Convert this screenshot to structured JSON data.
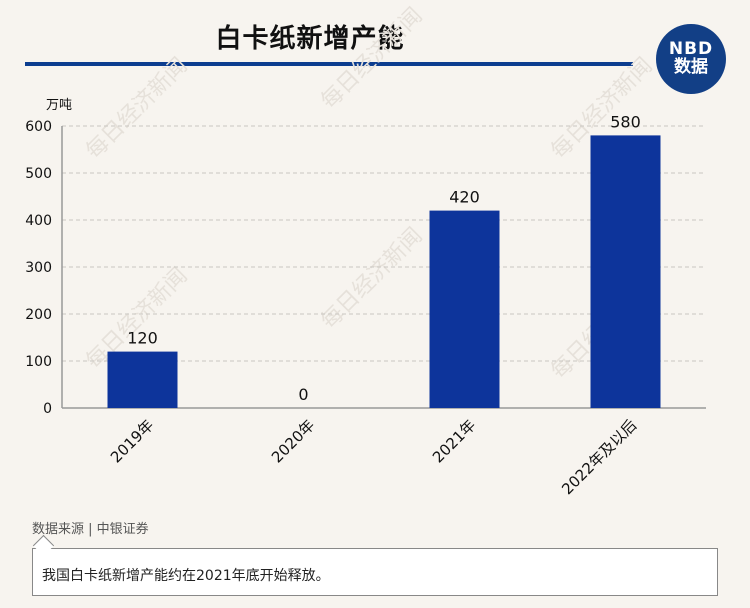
{
  "header": {
    "title": "白卡纸新增产能",
    "logo_text_top": "NBD",
    "logo_text_bottom": "数据"
  },
  "watermark_text": "每日经济新闻",
  "colors": {
    "bar": "#0d349b",
    "rule": "#0c3d8f",
    "logo": "#123f86"
  },
  "chart_data": {
    "type": "bar",
    "title": "白卡纸新增产能",
    "ylabel": "万吨",
    "categories": [
      "2019年",
      "2020年",
      "2021年",
      "2022年及以后"
    ],
    "values": [
      120,
      0,
      420,
      580
    ],
    "data_labels": [
      "120",
      "0",
      "420",
      "580"
    ],
    "ylim": [
      0,
      600
    ],
    "yticks": [
      0,
      100,
      200,
      300,
      400,
      500,
      600
    ],
    "grid": true,
    "legend": "none"
  },
  "footer": {
    "source": "数据来源 | 中银证券",
    "note": "我国白卡纸新增产能约在2021年底开始释放。"
  }
}
